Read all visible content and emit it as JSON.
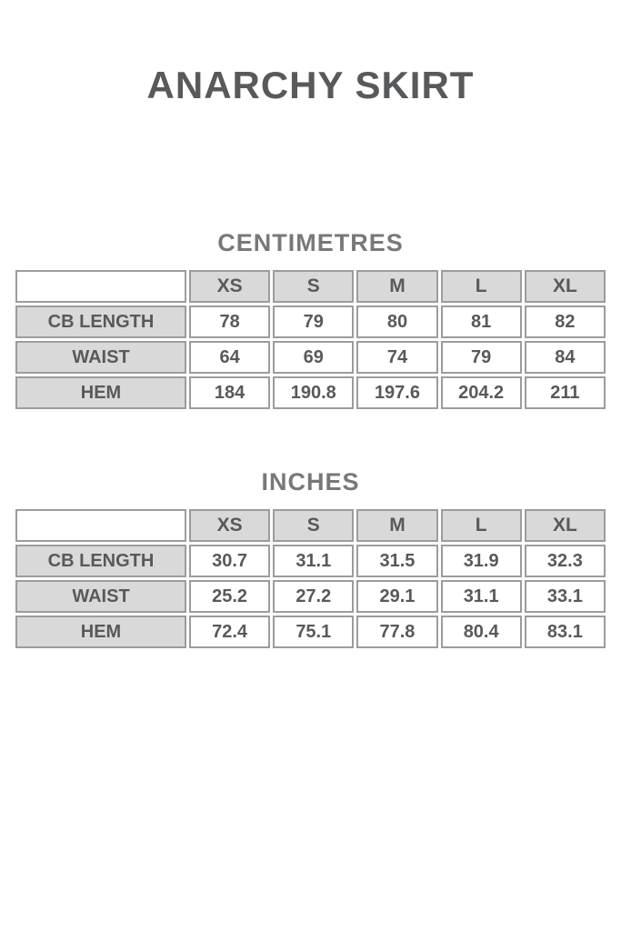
{
  "page": {
    "title": "ANARCHY SKIRT",
    "background": "#ffffff"
  },
  "colors": {
    "title_text": "#58595b",
    "section_heading_text": "#77787a",
    "cell_text": "#58595b",
    "header_cell_bg": "#d9d9d9",
    "value_cell_bg": "#ffffff",
    "cell_border": "#9c9c9c"
  },
  "tables": [
    {
      "section_title": "CENTIMETRES",
      "columns": [
        "XS",
        "S",
        "M",
        "L",
        "XL"
      ],
      "rows": [
        {
          "label": "CB LENGTH",
          "values": [
            "78",
            "79",
            "80",
            "81",
            "82"
          ]
        },
        {
          "label": "WAIST",
          "values": [
            "64",
            "69",
            "74",
            "79",
            "84"
          ]
        },
        {
          "label": "HEM",
          "values": [
            "184",
            "190.8",
            "197.6",
            "204.2",
            "211"
          ]
        }
      ]
    },
    {
      "section_title": "INCHES",
      "columns": [
        "XS",
        "S",
        "M",
        "L",
        "XL"
      ],
      "rows": [
        {
          "label": "CB LENGTH",
          "values": [
            "30.7",
            "31.1",
            "31.5",
            "31.9",
            "32.3"
          ]
        },
        {
          "label": "WAIST",
          "values": [
            "25.2",
            "27.2",
            "29.1",
            "31.1",
            "33.1"
          ]
        },
        {
          "label": "HEM",
          "values": [
            "72.4",
            "75.1",
            "77.8",
            "80.4",
            "83.1"
          ]
        }
      ]
    }
  ]
}
